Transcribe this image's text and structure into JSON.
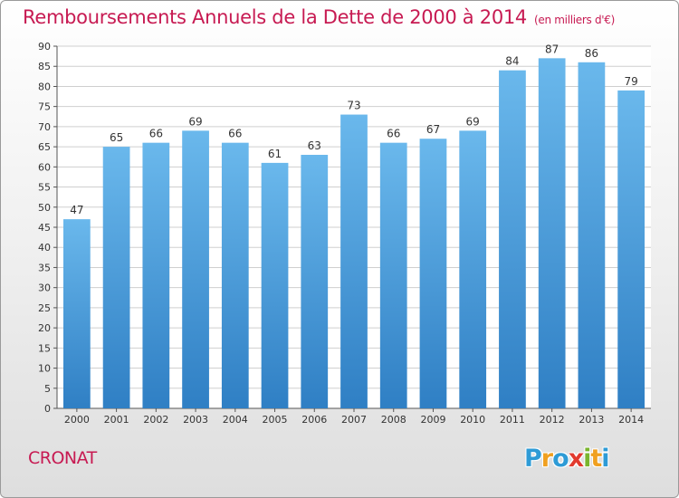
{
  "title": "Remboursements Annuels de la Dette de 2000 à 2014",
  "subtitle": "(en milliers d'€)",
  "commune": "CRONAT",
  "logo": {
    "letters": [
      "P",
      "r",
      "o",
      "x",
      "i",
      "t",
      "i"
    ],
    "colors": [
      "#2e9bd6",
      "#f0a020",
      "#2e9bd6",
      "#e23a2e",
      "#7ab52e",
      "#f0a020",
      "#2e9bd6"
    ]
  },
  "colors": {
    "bar_top": "#6ab8ec",
    "bar_bottom": "#2f7fc4",
    "title": "#c71a52",
    "grid": "#cfcfcf"
  },
  "chart_data": {
    "type": "bar",
    "title": "Remboursements Annuels de la Dette de 2000 à 2014",
    "subtitle": "(en milliers d'€)",
    "xlabel": "",
    "ylabel": "",
    "ylim": [
      0,
      90
    ],
    "yticks": [
      0,
      5,
      10,
      15,
      20,
      25,
      30,
      35,
      40,
      45,
      50,
      55,
      60,
      65,
      70,
      75,
      80,
      85,
      90
    ],
    "grid": true,
    "categories": [
      "2000",
      "2001",
      "2002",
      "2003",
      "2004",
      "2005",
      "2006",
      "2007",
      "2008",
      "2009",
      "2010",
      "2011",
      "2012",
      "2013",
      "2014"
    ],
    "values": [
      47,
      65,
      66,
      69,
      66,
      61,
      63,
      73,
      66,
      67,
      69,
      84,
      87,
      86,
      79
    ]
  }
}
